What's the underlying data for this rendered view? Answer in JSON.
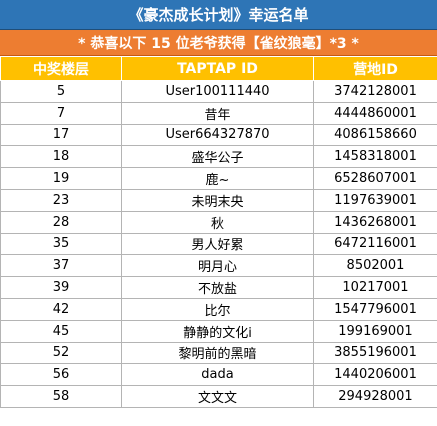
{
  "title": "《豪杰成长计划》幸运名单",
  "subtitle": "* 恭喜以下 15 位老爷获得【雀纹狼毫】*3 *",
  "colors": {
    "title_bg": "#2e75b6",
    "subtitle_bg": "#ed7d31",
    "header_bg": "#ffc000"
  },
  "table": {
    "headers": [
      "中奖楼层",
      "TAPTAP ID",
      "营地ID"
    ],
    "rows": [
      [
        "5",
        "User100111440",
        "3742128001"
      ],
      [
        "7",
        "昔年",
        "4444860001"
      ],
      [
        "17",
        "User664327870",
        "4086158660"
      ],
      [
        "18",
        "盛华公子",
        "1458318001"
      ],
      [
        "19",
        "鹿~",
        "6528607001"
      ],
      [
        "23",
        "未明末央",
        "1197639001"
      ],
      [
        "28",
        "秋",
        "1436268001"
      ],
      [
        "35",
        "男人好累",
        "6472116001"
      ],
      [
        "37",
        "明月心",
        "8502001"
      ],
      [
        "39",
        "不放盐",
        "10217001"
      ],
      [
        "42",
        "比尔",
        "1547796001"
      ],
      [
        "45",
        "静静的文化i",
        "199169001"
      ],
      [
        "52",
        "黎明前的黑暗",
        "3855196001"
      ],
      [
        "56",
        "dada",
        "1440206001"
      ],
      [
        "58",
        "文文文",
        "294928001"
      ]
    ]
  }
}
